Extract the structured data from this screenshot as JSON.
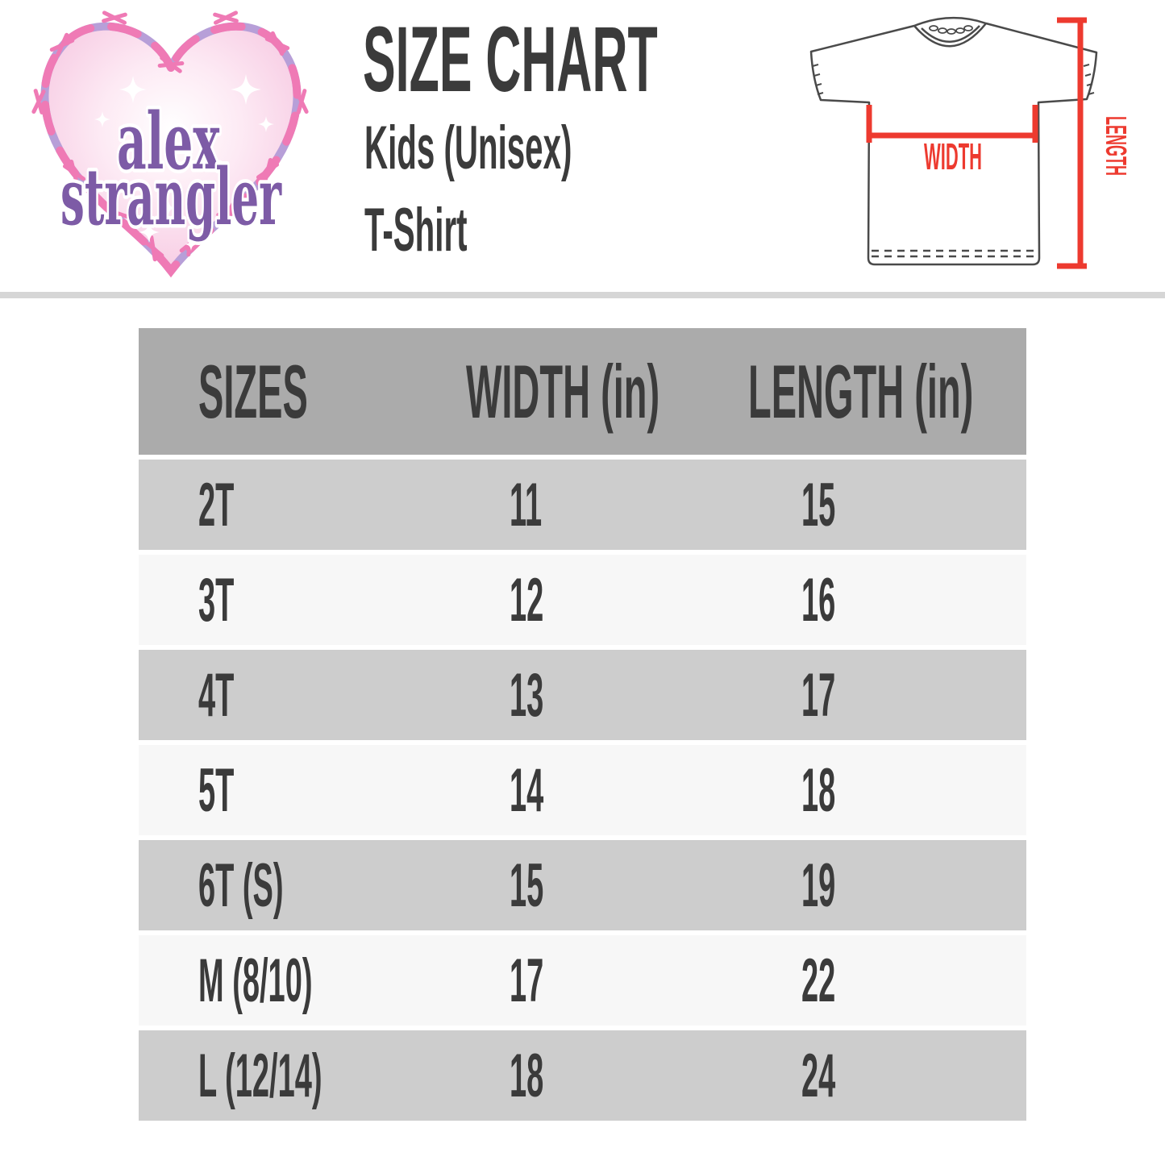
{
  "logo": {
    "line1": "alex",
    "line2": "strangler"
  },
  "title": {
    "heading": "SIZE CHART",
    "product_line1": "Kids (Unisex)",
    "product_line2": "T-Shirt"
  },
  "diagram": {
    "width_label": "WIDTH",
    "length_label": "LENGTH"
  },
  "chart_data": {
    "type": "table",
    "title": "SIZE CHART",
    "subtitle": "Kids (Unisex) T-Shirt",
    "columns": [
      "SIZES",
      "WIDTH (in)",
      "LENGTH (in)"
    ],
    "rows": [
      [
        "2T",
        "11",
        "15"
      ],
      [
        "3T",
        "12",
        "16"
      ],
      [
        "4T",
        "13",
        "17"
      ],
      [
        "5T",
        "14",
        "18"
      ],
      [
        "6T (S)",
        "15",
        "19"
      ],
      [
        "M (8/10)",
        "17",
        "22"
      ],
      [
        "L (12/14)",
        "18",
        "24"
      ]
    ]
  },
  "colors": {
    "accent_red": "#ed3a2f",
    "wire_pink": "#ef7ab5",
    "wire_purple": "#b79fd8",
    "logo_text_purple": "#7d5ba6",
    "heart_fill_edge": "#f8cde4",
    "header_gray": "#ababab",
    "row_gray": "#cdcdcd",
    "row_light": "#f7f7f7",
    "divider_gray": "#d6d6d6",
    "text_dark": "#3b3b3b",
    "shirt_outline": "#4a4a4a"
  }
}
